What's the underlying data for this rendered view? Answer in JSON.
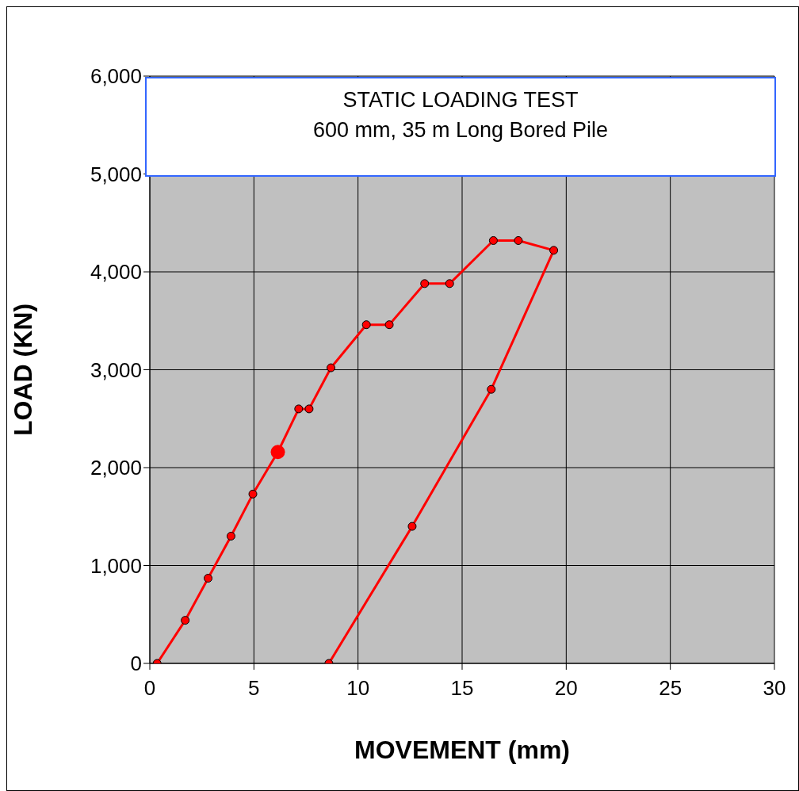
{
  "chart_data": {
    "type": "line",
    "title": "STATIC LOADING TEST",
    "subtitle": "600 mm, 35 m Long Bored Pile",
    "xlabel": "MOVEMENT  (mm)",
    "ylabel": "LOAD  (KN)",
    "series": [
      {
        "color": "#ff0000",
        "x": [
          0.35,
          1.7,
          2.8,
          3.9,
          4.95,
          6.15,
          7.15,
          7.65,
          8.7,
          10.4,
          11.5,
          13.2,
          14.4,
          16.5,
          17.7,
          19.4,
          16.4,
          12.6,
          8.6
        ],
        "values": [
          0,
          440,
          870,
          1300,
          1730,
          2160,
          2600,
          2600,
          3020,
          3460,
          3460,
          3880,
          3880,
          4320,
          4320,
          4220,
          2800,
          1400,
          0
        ]
      },
      {
        "type": "scatter",
        "color": "#ff0000",
        "x": [
          6.15
        ],
        "values": [
          2160
        ]
      }
    ],
    "xlim": [
      0,
      30
    ],
    "xticks": [
      0,
      5,
      10,
      15,
      20,
      25,
      30
    ],
    "ylim": [
      0,
      6000
    ],
    "yticks": [
      {
        "value": 0,
        "label": "0"
      },
      {
        "value": 1000,
        "label": "1,000"
      },
      {
        "value": 2000,
        "label": "2,000"
      },
      {
        "value": 3000,
        "label": "3,000"
      },
      {
        "value": 4000,
        "label": "4,000"
      },
      {
        "value": 5000,
        "label": "5,000"
      },
      {
        "value": 6000,
        "label": "6,000"
      }
    ],
    "grid": true,
    "marker": "circle",
    "line_style": "solid"
  }
}
